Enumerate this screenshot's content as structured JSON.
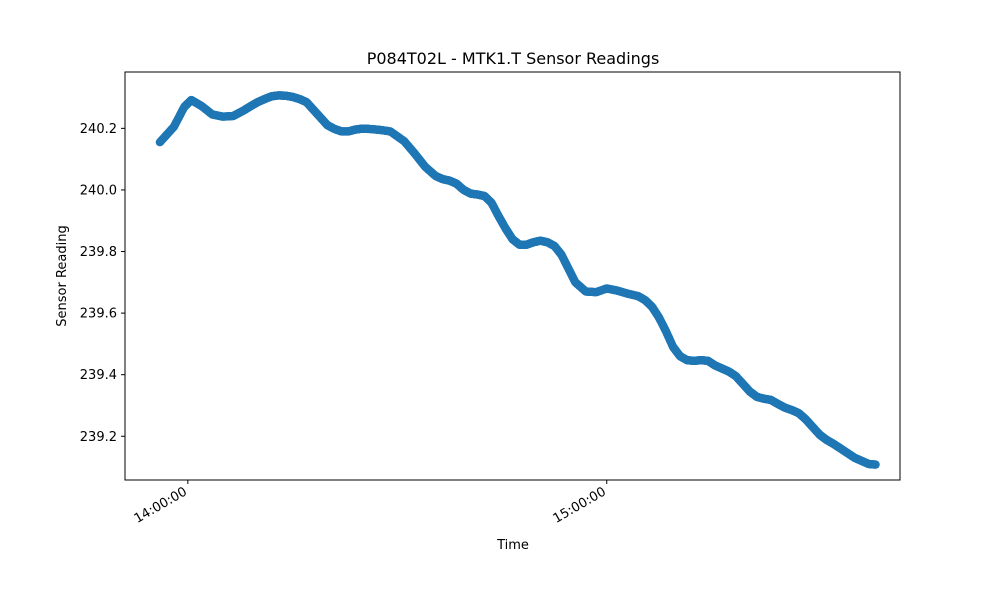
{
  "chart_data": {
    "type": "scatter",
    "title": "P084T02L - MTK1.T Sensor Readings",
    "xlabel": "Time",
    "ylabel": "Sensor Reading",
    "xlim": [
      "13:51:00",
      "15:42:00"
    ],
    "ylim": [
      239.058,
      240.383
    ],
    "xticks": [
      "14:00:00",
      "15:00:00"
    ],
    "yticks": [
      239.2,
      239.4,
      239.6,
      239.8,
      240.0,
      240.2
    ],
    "grid": false,
    "legend": "none",
    "color": "#1f77b4",
    "series": [
      {
        "x": [
          "13:56:00",
          "13:58:00",
          "13:59:30",
          "14:00:30",
          "14:02:00",
          "14:03:30",
          "14:05:00",
          "14:06:30",
          "14:08:00",
          "14:09:00",
          "14:10:00",
          "14:11:00",
          "14:12:00",
          "14:13:00",
          "14:14:00",
          "14:15:00",
          "14:16:00",
          "14:17:00",
          "14:18:00",
          "14:19:00",
          "14:20:00",
          "14:21:00",
          "14:22:00",
          "14:23:00",
          "14:24:00",
          "14:25:00",
          "14:26:00",
          "14:27:30",
          "14:29:00",
          "14:31:00",
          "14:32:30",
          "14:34:00",
          "14:35:30",
          "14:36:30",
          "14:37:30",
          "14:38:30",
          "14:39:30",
          "14:40:30",
          "14:41:30",
          "14:42:30",
          "14:43:30",
          "14:44:30",
          "14:45:30",
          "14:46:30",
          "14:47:30",
          "14:48:30",
          "14:49:30",
          "14:50:30",
          "14:51:30",
          "14:52:30",
          "14:53:30",
          "14:54:30",
          "14:55:30",
          "14:57:00",
          "14:58:30",
          "15:00:00",
          "15:01:30",
          "15:03:00",
          "15:04:30",
          "15:05:30",
          "15:06:30",
          "15:07:30",
          "15:08:30",
          "15:09:30",
          "15:10:30",
          "15:11:30",
          "15:12:30",
          "15:13:30",
          "15:14:30",
          "15:15:30",
          "15:16:30",
          "15:17:30",
          "15:18:30",
          "15:19:30",
          "15:20:30",
          "15:21:30",
          "15:22:30",
          "15:23:30",
          "15:24:30",
          "15:25:30",
          "15:26:30",
          "15:27:30",
          "15:28:30",
          "15:29:30",
          "15:30:30",
          "15:31:30",
          "15:32:30",
          "15:33:30",
          "15:34:30",
          "15:35:30",
          "15:36:30",
          "15:37:30",
          "15:38:30"
        ],
        "y": [
          240.155,
          240.205,
          240.27,
          240.292,
          240.272,
          240.245,
          240.238,
          240.24,
          240.258,
          240.272,
          240.285,
          240.295,
          240.304,
          240.307,
          240.306,
          240.302,
          240.295,
          240.285,
          240.26,
          240.235,
          240.21,
          240.198,
          240.19,
          240.19,
          240.196,
          240.199,
          240.198,
          240.195,
          240.19,
          240.158,
          240.118,
          240.075,
          240.045,
          240.035,
          240.03,
          240.02,
          240.0,
          239.988,
          239.985,
          239.98,
          239.958,
          239.915,
          239.875,
          239.84,
          239.822,
          239.822,
          239.83,
          239.835,
          239.83,
          239.818,
          239.79,
          239.745,
          239.7,
          239.67,
          239.668,
          239.68,
          239.673,
          239.663,
          239.655,
          239.642,
          239.62,
          239.585,
          239.54,
          239.49,
          239.46,
          239.447,
          239.445,
          239.447,
          239.445,
          239.43,
          239.42,
          239.41,
          239.395,
          239.37,
          239.345,
          239.328,
          239.322,
          239.318,
          239.305,
          239.293,
          239.285,
          239.275,
          239.255,
          239.23,
          239.205,
          239.188,
          239.175,
          239.16,
          239.145,
          239.13,
          239.12,
          239.11,
          239.108
        ]
      }
    ]
  }
}
